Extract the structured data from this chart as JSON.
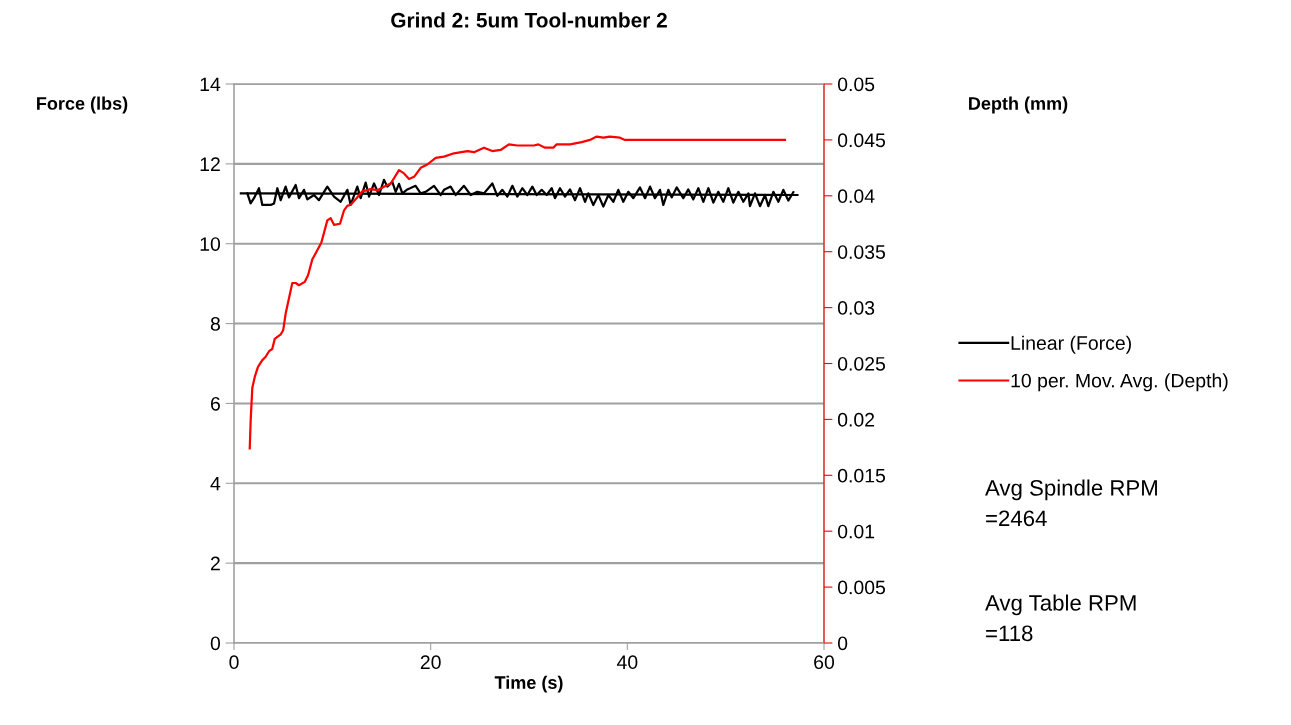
{
  "chart_data": {
    "type": "line",
    "title": "Grind 2: 5um Tool-number 2",
    "xlabel": "Time (s)",
    "ylabel": "Force (lbs)",
    "y2label": "Depth (mm)",
    "xlim": [
      0,
      60
    ],
    "xticks": [
      0,
      20,
      40,
      60
    ],
    "ylim": [
      0,
      14
    ],
    "yticks": [
      0,
      2,
      4,
      6,
      8,
      10,
      12,
      14
    ],
    "y2lim": [
      0,
      0.05
    ],
    "y2ticks": [
      0,
      0.005,
      0.01,
      0.015,
      0.02,
      0.025,
      0.03,
      0.035,
      0.04,
      0.045,
      0.05
    ],
    "grid": "y",
    "legend": "right",
    "marker": "none",
    "line_style": "solid",
    "series": [
      {
        "color": "#000000",
        "x": [
          1.36,
          1.69,
          2.03,
          2.54,
          2.88,
          3.73,
          4.07,
          4.41,
          4.75,
          5.25,
          5.59,
          6.27,
          6.61,
          7.12,
          7.46,
          8.14,
          8.64,
          9.49,
          10.17,
          10.85,
          11.53,
          11.86,
          12.54,
          12.88,
          13.39,
          13.73,
          14.24,
          14.75,
          15.25,
          15.59,
          16.1,
          16.44,
          16.78,
          17.12,
          17.63,
          18.47,
          18.98,
          19.49,
          20.34,
          21.02,
          21.36,
          22.03,
          22.54,
          23.39,
          24.07,
          24.75,
          25.42,
          26.27,
          26.78,
          27.29,
          27.8,
          28.31,
          28.81,
          29.32,
          29.83,
          30.34,
          30.78,
          31.29,
          31.8,
          32.31,
          32.64,
          33.15,
          33.66,
          34.17,
          34.68,
          35.19,
          35.7,
          36.03,
          36.54,
          37.05,
          37.56,
          38.07,
          38.58,
          39.08,
          39.59,
          40.1,
          40.61,
          41.29,
          41.8,
          42.31,
          42.81,
          43.32,
          43.66,
          44.17,
          44.51,
          45.02,
          45.69,
          46.2,
          46.71,
          47.22,
          47.73,
          48.24,
          48.75,
          49.25,
          49.76,
          50.27,
          50.78,
          51.29,
          51.8,
          52.31,
          52.47,
          52.98,
          53.49,
          54.0,
          54.34,
          54.85,
          55.36,
          55.86,
          56.37,
          56.88
        ],
        "values": [
          11.26,
          11.01,
          11.14,
          11.39,
          10.97,
          10.97,
          11.01,
          11.39,
          11.09,
          11.43,
          11.16,
          11.47,
          11.14,
          11.35,
          11.11,
          11.22,
          11.09,
          11.43,
          11.18,
          11.05,
          11.35,
          10.97,
          11.43,
          11.14,
          11.53,
          11.18,
          11.51,
          11.22,
          11.6,
          11.43,
          11.55,
          11.3,
          11.5,
          11.26,
          11.36,
          11.45,
          11.26,
          11.3,
          11.45,
          11.22,
          11.35,
          11.43,
          11.22,
          11.45,
          11.22,
          11.3,
          11.26,
          11.51,
          11.2,
          11.35,
          11.18,
          11.45,
          11.18,
          11.39,
          11.22,
          11.43,
          11.22,
          11.35,
          11.22,
          11.39,
          11.14,
          11.39,
          11.18,
          11.36,
          11.09,
          11.39,
          11.05,
          11.26,
          10.97,
          11.22,
          10.93,
          11.22,
          11.05,
          11.35,
          11.05,
          11.3,
          11.14,
          11.41,
          11.14,
          11.43,
          11.14,
          11.35,
          10.97,
          11.35,
          11.16,
          11.41,
          11.14,
          11.36,
          11.11,
          11.39,
          11.05,
          11.39,
          11.03,
          11.3,
          11.05,
          11.39,
          11.03,
          11.3,
          11.05,
          11.26,
          10.94,
          11.26,
          10.94,
          11.22,
          10.94,
          11.3,
          11.05,
          11.35,
          11.08,
          11.29
        ]
      },
      {
        "name": "Linear (Force)",
        "color": "#000000",
        "x": [
          0.7,
          57.3
        ],
        "values": [
          11.26,
          11.22
        ]
      },
      {
        "name": "10 per. Mov. Avg. (Depth)",
        "color": "#ff0000",
        "axis": "y2",
        "x": [
          1.6,
          1.7,
          1.86,
          2.11,
          2.44,
          2.88,
          3.22,
          3.56,
          3.89,
          4.14,
          4.75,
          5.01,
          5.26,
          5.93,
          6.27,
          6.61,
          7.19,
          7.53,
          7.96,
          8.88,
          9.49,
          9.83,
          10.17,
          10.78,
          11.19,
          11.52,
          11.87,
          12.48,
          13.05,
          13.9,
          14.57,
          15.25,
          15.94,
          16.78,
          17.29,
          17.8,
          18.31,
          18.99,
          19.66,
          20.51,
          21.36,
          22.37,
          23.73,
          24.41,
          25.42,
          26.27,
          27.11,
          27.96,
          28.81,
          30.51,
          30.95,
          31.63,
          32.47,
          32.81,
          34.17,
          35.36,
          36.2,
          36.88,
          37.56,
          38.24,
          39.25,
          39.76,
          56.03
        ],
        "values": [
          0.0174,
          0.02,
          0.0228,
          0.0238,
          0.0247,
          0.0253,
          0.0256,
          0.0261,
          0.0263,
          0.0272,
          0.0276,
          0.028,
          0.0295,
          0.0322,
          0.0322,
          0.032,
          0.0323,
          0.0329,
          0.0343,
          0.0358,
          0.0378,
          0.038,
          0.0374,
          0.0375,
          0.0387,
          0.0391,
          0.0392,
          0.0398,
          0.0404,
          0.0406,
          0.0405,
          0.0408,
          0.0411,
          0.0423,
          0.042,
          0.0415,
          0.0417,
          0.0425,
          0.0428,
          0.0434,
          0.0435,
          0.0438,
          0.044,
          0.0439,
          0.0443,
          0.044,
          0.0441,
          0.0446,
          0.0445,
          0.0445,
          0.0446,
          0.0443,
          0.0443,
          0.0446,
          0.0446,
          0.0448,
          0.045,
          0.0453,
          0.0452,
          0.0453,
          0.0452,
          0.045,
          0.045
        ]
      }
    ],
    "annotations": [
      "Avg Spindle RPM\n=2464",
      "Avg Table RPM\n=118"
    ]
  }
}
